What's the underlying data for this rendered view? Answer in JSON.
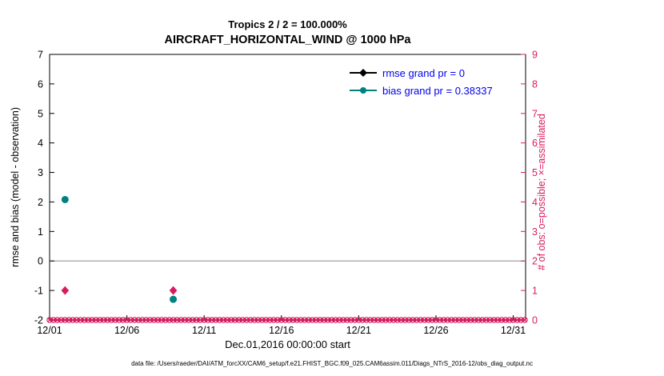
{
  "chart_data": {
    "type": "scatter",
    "title_line1": "Tropics 2 / 2 = 100.000%",
    "title_line2": "AIRCRAFT_HORIZONTAL_WIND @ 1000 hPa",
    "xlabel": "Dec.01,2016 00:00:00 start",
    "ylabel_left": "rmse and bias (model - observation)",
    "ylabel_right": "# of obs: o=possible; ×=assimilated",
    "footer_caption": "data file: /Users/raeder/DAI/ATM_forcXX/CAM6_setup/f.e21.FHIST_BGC.f09_025.CAM6assim.011/Diags_NTrS_2016-12/obs_diag_output.nc",
    "x_tick_labels": [
      "12/01",
      "12/06",
      "12/11",
      "12/16",
      "12/21",
      "12/26",
      "12/31"
    ],
    "x_tick_days": [
      1,
      6,
      11,
      16,
      21,
      26,
      31
    ],
    "xlim_days": [
      1,
      31.8
    ],
    "ylim_left": [
      -2,
      7
    ],
    "y_ticks_left": [
      -2,
      -1,
      0,
      1,
      2,
      3,
      4,
      5,
      6,
      7
    ],
    "ylim_right": [
      0,
      9
    ],
    "y_ticks_right": [
      0,
      1,
      2,
      3,
      4,
      5,
      6,
      7,
      8,
      9
    ],
    "grid": false,
    "legend_position": "top-right-inside",
    "legend": [
      {
        "label": "rmse grand pr = 0",
        "marker": "diamond",
        "color": "#000000"
      },
      {
        "label": "bias grand pr = 0.38337",
        "marker": "circle",
        "color": "#008080"
      }
    ],
    "colors": {
      "rmse": "#000000",
      "bias": "#008080",
      "obs_axis": "#d81b60",
      "legend_text": "#0000ee",
      "zero_line": "#b0b0b0",
      "axis_box": "#000000"
    },
    "zero_reference_line": 0,
    "series": {
      "rmse_points_left_axis": [],
      "bias_points_left_axis": [
        {
          "day": 2,
          "value": 2.08
        },
        {
          "day": 9,
          "value": -1.3
        }
      ],
      "obs_count_right_axis_nonzero": [
        {
          "day": 2,
          "value": 1
        },
        {
          "day": 9,
          "value": 1
        }
      ],
      "obs_count_right_axis_zero_band": {
        "day_start": 1,
        "day_end": 31.75,
        "day_step": 0.25,
        "value": 0
      }
    }
  }
}
